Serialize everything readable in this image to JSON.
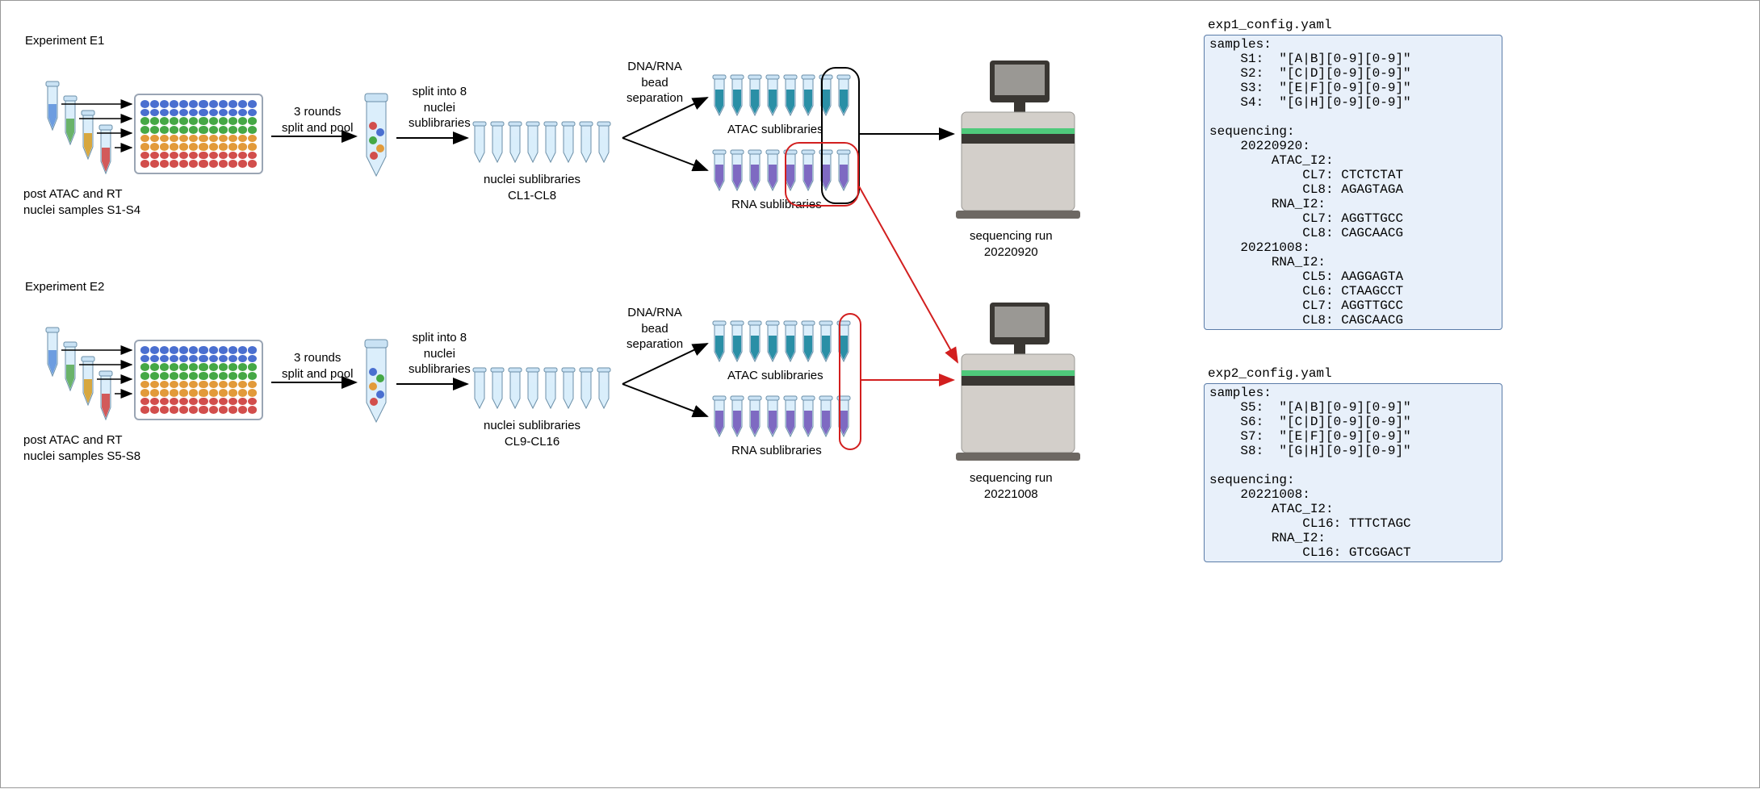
{
  "experiments": {
    "e1": {
      "title": "Experiment E1",
      "samples_label": "post ATAC and RT\nnuclei samples S1-S4",
      "rounds_label": "3 rounds\nsplit and pool",
      "split8_label": "split into 8\nnuclei\nsublibraries",
      "nuclei_label": "nuclei sublibraries\nCL1-CL8",
      "bead_label": "DNA/RNA\nbead\nseparation",
      "atac_label": "ATAC sublibraries",
      "rna_label": "RNA sublibraries"
    },
    "e2": {
      "title": "Experiment E2",
      "samples_label": "post ATAC and RT\nnuclei samples S5-S8",
      "rounds_label": "3 rounds\nsplit and pool",
      "split8_label": "split into 8\nnuclei\nsublibraries",
      "nuclei_label": "nuclei sublibraries\nCL9-CL16",
      "bead_label": "DNA/RNA\nbead\nseparation",
      "atac_label": "ATAC sublibraries",
      "rna_label": "RNA sublibraries"
    }
  },
  "seq_runs": {
    "run1": "sequencing run\n20220920",
    "run2": "sequencing run\n20221008"
  },
  "colors": {
    "tube_blue": "#6d9de0",
    "tube_green": "#6ab36a",
    "tube_yellow": "#d7a73f",
    "tube_red": "#d25a5a",
    "well_blue": "#4a6fd0",
    "well_green": "#45a845",
    "well_orange": "#e29a3a",
    "well_red": "#d24e4c",
    "liquid_clear": "#d9eefb",
    "liquid_teal": "#2a8fa6",
    "liquid_purple": "#7e6ac2",
    "highlight_black": "#000000",
    "highlight_red": "#d21f1f",
    "sequencer_body": "#d3cfca",
    "sequencer_dark": "#3a3733",
    "sequencer_green": "#4fc97b",
    "yaml_bg": "#e8f0fa",
    "yaml_border": "#5b7ca8"
  },
  "yaml": {
    "file1": {
      "filename": "exp1_config.yaml",
      "text": "samples:\n    S1:  \"[A|B][0-9][0-9]\"\n    S2:  \"[C|D][0-9][0-9]\"\n    S3:  \"[E|F][0-9][0-9]\"\n    S4:  \"[G|H][0-9][0-9]\"\n\nsequencing:\n    20220920:\n        ATAC_I2:\n            CL7: CTCTCTAT\n            CL8: AGAGTAGA\n        RNA_I2:\n            CL7: AGGTTGCC\n            CL8: CAGCAACG\n    20221008:\n        RNA_I2:\n            CL5: AAGGAGTA\n            CL6: CTAAGCCT\n            CL7: AGGTTGCC\n            CL8: CAGCAACG"
    },
    "file2": {
      "filename": "exp2_config.yaml",
      "text": "samples:\n    S5:  \"[A|B][0-9][0-9]\"\n    S6:  \"[C|D][0-9][0-9]\"\n    S7:  \"[E|F][0-9][0-9]\"\n    S8:  \"[G|H][0-9][0-9]\"\n\nsequencing:\n    20221008:\n        ATAC_I2:\n            CL16: TTTCTAGC\n        RNA_I2:\n            CL16: GTCGGACT"
    }
  },
  "layout": {
    "plate_colors_rows": [
      "well_blue",
      "well_blue",
      "well_green",
      "well_green",
      "well_orange",
      "well_orange",
      "well_red",
      "well_red"
    ]
  }
}
